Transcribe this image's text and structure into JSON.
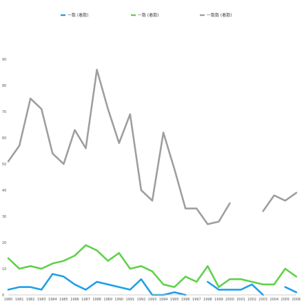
{
  "chart_data": {
    "type": "line",
    "title": "",
    "xlabel": "",
    "ylabel": "",
    "ylim": [
      0,
      100
    ],
    "yticks": [
      "0",
      "10",
      "20",
      "30",
      "40",
      "50",
      "60",
      "70",
      "80",
      "90"
    ],
    "categories": [
      "1980",
      "1981",
      "1982",
      "1983",
      "1984",
      "1985",
      "1986",
      "1987",
      "1988",
      "1989",
      "1990",
      "1991",
      "1992",
      "1993",
      "1994",
      "1995",
      "1996",
      "1997",
      "1998",
      "1999",
      "2000",
      "2001",
      "2002",
      "2003",
      "2004",
      "2005",
      "2006"
    ],
    "grid": false,
    "legend_position": "top",
    "series": [
      {
        "name": "一数 (着数)",
        "color": "#1f9fe8",
        "values": [
          2,
          3,
          3,
          2,
          8,
          7,
          4,
          2,
          5,
          4,
          3,
          2,
          6,
          0,
          0,
          1,
          0,
          null,
          5,
          2,
          2,
          2,
          4,
          0,
          null,
          3,
          1
        ]
      },
      {
        "name": "一数 (着数)",
        "color": "#5fd14a",
        "values": [
          14,
          10,
          11,
          10,
          12,
          13,
          15,
          19,
          17,
          13,
          16,
          10,
          11,
          9,
          4,
          3,
          7,
          5,
          11,
          3,
          6,
          6,
          5,
          4,
          4,
          10,
          7
        ]
      },
      {
        "name": "一数数 (着数)",
        "color": "#9e9e9e",
        "values": [
          51,
          57,
          75,
          71,
          54,
          50,
          63,
          56,
          86,
          71,
          58,
          69,
          40,
          36,
          62,
          48,
          33,
          33,
          27,
          28,
          35,
          null,
          null,
          32,
          38,
          36,
          39
        ]
      }
    ]
  }
}
